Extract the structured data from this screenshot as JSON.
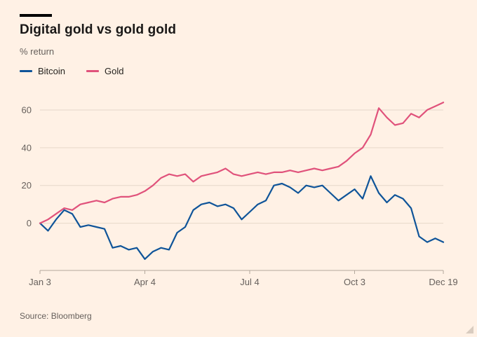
{
  "header": {
    "title": "Digital gold vs gold gold",
    "subtitle": "% return"
  },
  "footer": {
    "source": "Source: Bloomberg"
  },
  "colors": {
    "background": "#fff1e5",
    "title_text": "#1a1817",
    "muted_text": "#66605c",
    "bitcoin_line": "#0f5499",
    "gold_line": "#e0527b"
  },
  "chart_data": {
    "type": "line",
    "title": "Digital gold vs gold gold",
    "xlabel": "",
    "ylabel": "% return",
    "ylim": [
      -25,
      70
    ],
    "grid": "horizontal",
    "legend_position": "top-left",
    "x_unit": "weeks from Jan 3",
    "x": [
      0,
      1,
      2,
      3,
      4,
      5,
      6,
      7,
      8,
      9,
      10,
      11,
      12,
      13,
      14,
      15,
      16,
      17,
      18,
      19,
      20,
      21,
      22,
      23,
      24,
      25,
      26,
      27,
      28,
      29,
      30,
      31,
      32,
      33,
      34,
      35,
      36,
      37,
      38,
      39,
      40,
      41,
      42,
      43,
      44,
      45,
      46,
      47,
      48,
      49,
      50
    ],
    "series": [
      {
        "name": "Bitcoin",
        "color": "#0f5499",
        "values": [
          0,
          -4,
          2,
          7,
          5,
          -2,
          -1,
          -2,
          -3,
          -13,
          -12,
          -14,
          -13,
          -19,
          -15,
          -13,
          -14,
          -5,
          -2,
          7,
          10,
          11,
          9,
          10,
          8,
          2,
          6,
          10,
          12,
          20,
          21,
          19,
          16,
          20,
          19,
          20,
          16,
          12,
          15,
          18,
          13,
          25,
          16,
          11,
          15,
          13,
          8,
          -7,
          -10,
          -8,
          -10
        ]
      },
      {
        "name": "Gold",
        "color": "#e0527b",
        "values": [
          0,
          2,
          5,
          8,
          7,
          10,
          11,
          12,
          11,
          13,
          14,
          14,
          15,
          17,
          20,
          24,
          26,
          25,
          26,
          22,
          25,
          26,
          27,
          29,
          26,
          25,
          26,
          27,
          26,
          27,
          27,
          28,
          27,
          28,
          29,
          28,
          29,
          30,
          33,
          37,
          40,
          47,
          61,
          56,
          52,
          53,
          58,
          56,
          60,
          62,
          64
        ]
      }
    ],
    "yticks": [
      0,
      20,
      40,
      60
    ],
    "xticks": [
      {
        "index": 0,
        "label": "Jan 3"
      },
      {
        "index": 13,
        "label": "Apr 4"
      },
      {
        "index": 26,
        "label": "Jul 4"
      },
      {
        "index": 39,
        "label": "Oct 3"
      },
      {
        "index": 50,
        "label": "Dec 19"
      }
    ],
    "style": {
      "grid_color": "#e6d8c9",
      "axis_color": "#b3a89c",
      "tick_text_color": "#66605c",
      "line_width": 2.2
    }
  }
}
